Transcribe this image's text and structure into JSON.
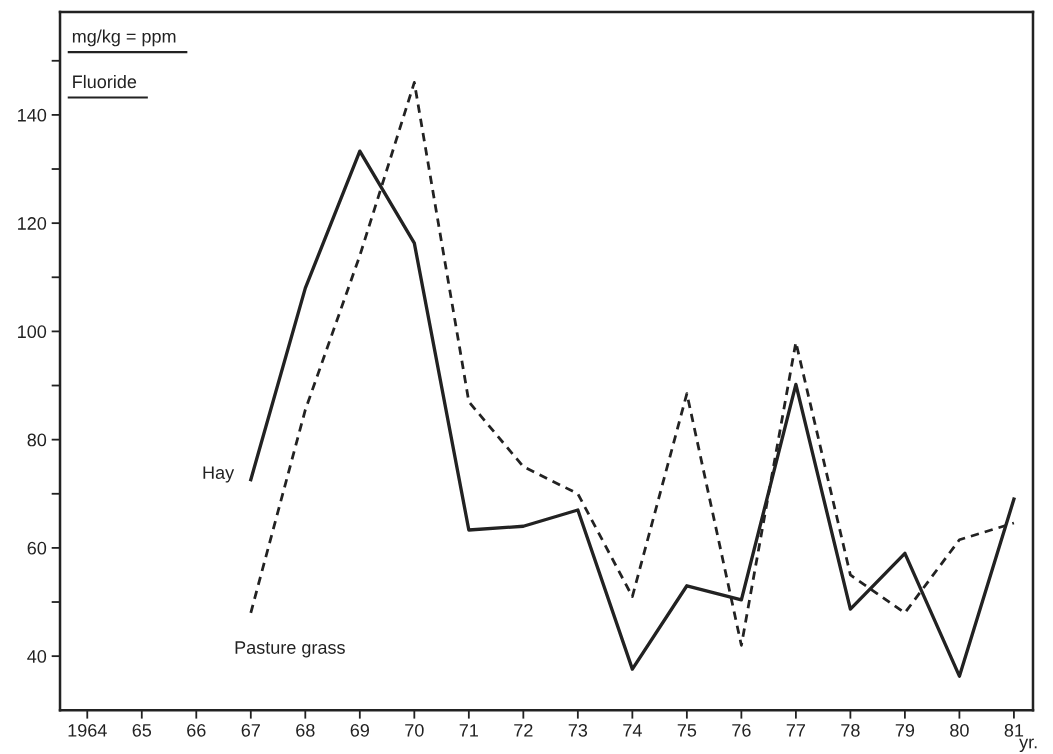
{
  "chart_data": {
    "type": "line",
    "title": "Fluoride",
    "ylabel": "mg/kg = ppm",
    "xlabel": "yr.",
    "x": [
      1967,
      1968,
      1969,
      1970,
      1971,
      1972,
      1973,
      1974,
      1975,
      1976,
      1977,
      1978,
      1979,
      1980,
      1981
    ],
    "series": [
      {
        "name": "Hay",
        "color": "#222222",
        "line_style": "solid",
        "values": [
          72.6,
          108,
          133.3,
          116.3,
          63.3,
          64,
          67,
          37.6,
          53,
          50.4,
          90.2,
          48.7,
          59,
          36.3,
          69
        ]
      },
      {
        "name": "Pasture grass",
        "color": "#222222",
        "line_style": "dashed",
        "values": [
          48,
          85.5,
          114,
          146,
          87,
          75,
          70,
          51,
          88.5,
          42,
          98,
          55,
          48,
          61.5,
          64.6
        ]
      }
    ],
    "xlim": [
      1963.5,
      1981.35
    ],
    "ylim": [
      30,
      159
    ],
    "xticks": [
      1964,
      {
        "value": 1965,
        "label": "65"
      },
      {
        "value": 1966,
        "label": "66"
      },
      {
        "value": 1967,
        "label": "67"
      },
      {
        "value": 1968,
        "label": "68"
      },
      {
        "value": 1969,
        "label": "69"
      },
      {
        "value": 1970,
        "label": "70"
      },
      {
        "value": 1971,
        "label": "71"
      },
      {
        "value": 1972,
        "label": "72"
      },
      {
        "value": 1973,
        "label": "73"
      },
      {
        "value": 1974,
        "label": "74"
      },
      {
        "value": 1975,
        "label": "75"
      },
      {
        "value": 1976,
        "label": "76"
      },
      {
        "value": 1977,
        "label": "77"
      },
      {
        "value": 1978,
        "label": "78"
      },
      {
        "value": 1979,
        "label": "79"
      },
      {
        "value": 1980,
        "label": "80"
      },
      {
        "value": 1981,
        "label": "81"
      }
    ],
    "yticks": [
      40,
      {
        "value": 50,
        "label": null
      },
      60,
      {
        "value": 70,
        "label": null
      },
      80,
      {
        "value": 90,
        "label": null
      },
      100,
      {
        "value": 110,
        "label": null
      },
      120,
      {
        "value": 130,
        "label": null
      },
      140,
      {
        "value": 150,
        "label": null
      }
    ],
    "grid": false,
    "legend": false,
    "marker": "none"
  }
}
